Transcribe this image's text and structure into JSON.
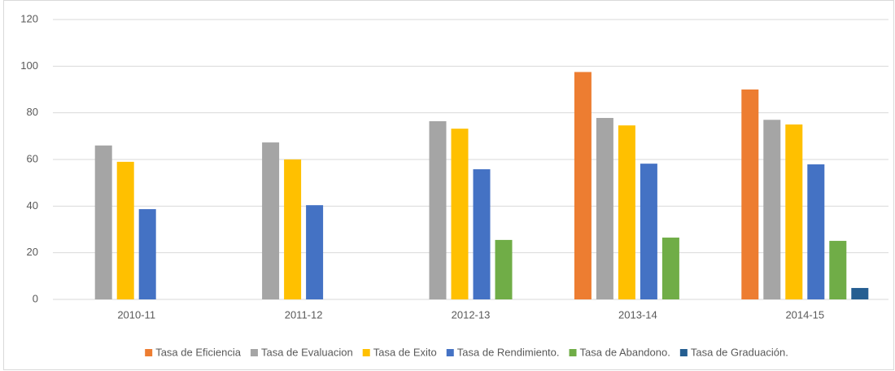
{
  "chart_data": {
    "type": "bar",
    "categories": [
      "2010-11",
      "2011-12",
      "2012-13",
      "2013-14",
      "2014-15"
    ],
    "series": [
      {
        "name": "Tasa de Eficiencia",
        "color": "#ed7d31",
        "values": [
          null,
          null,
          null,
          97.5,
          90
        ]
      },
      {
        "name": "Tasa de Evaluacion",
        "color": "#a5a5a5",
        "values": [
          66,
          67.3,
          76.4,
          77.8,
          77
        ]
      },
      {
        "name": "Tasa de Exito",
        "color": "#ffc000",
        "values": [
          59,
          60,
          73.2,
          74.6,
          75
        ]
      },
      {
        "name": "Tasa de Rendimiento.",
        "color": "#4472c4",
        "values": [
          38.7,
          40.4,
          55.8,
          58.2,
          57.9
        ]
      },
      {
        "name": "Tasa de Abandono.",
        "color": "#70ad47",
        "values": [
          null,
          null,
          25.5,
          26.5,
          25.1
        ]
      },
      {
        "name": "Tasa de Graduación.",
        "color": "#255e91",
        "values": [
          null,
          null,
          null,
          null,
          4.9
        ]
      }
    ],
    "ylim": [
      0,
      120
    ],
    "yticks": [
      0,
      20,
      40,
      60,
      80,
      100,
      120
    ],
    "grid": true,
    "legend": "bottom"
  }
}
